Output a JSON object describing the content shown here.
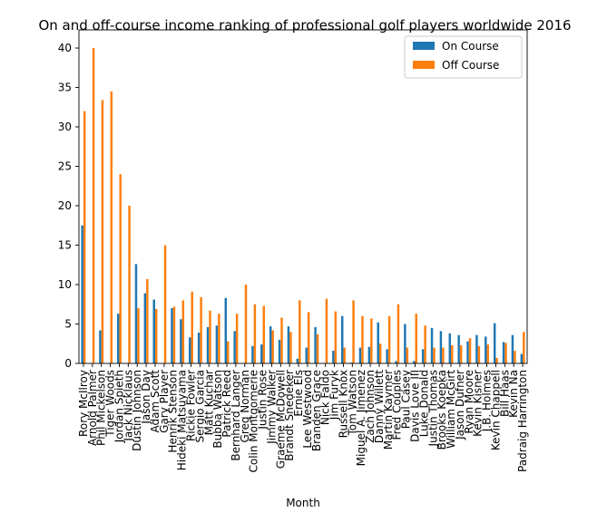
{
  "chart_data": {
    "type": "bar",
    "title": "On and off-course income ranking of professional golf players worldwide 2016",
    "xlabel": "Month",
    "ylabel": "",
    "ylim": [
      0,
      42.3
    ],
    "yticks": [
      0,
      5,
      10,
      15,
      20,
      25,
      30,
      35,
      40
    ],
    "grid": false,
    "legend_position": "top-right",
    "categories": [
      "Rory McIlroy",
      "Arnold Palmer",
      "Phil Mickelson",
      "Tiger Woods",
      "Jordan Spieth",
      "Jack Nicklaus",
      "Dustin Johnson",
      "Jason Day",
      "Adam Scott",
      "Gary Player",
      "Henrik Stenson",
      "Hideki Matsuyama",
      "Rickie Fowler",
      "Sergio Garcia",
      "Matt Kuchar",
      "Bubba Watson",
      "Patrick Reed",
      "Bernhard Langer",
      "Greg Norman",
      "Colin Montgomerie",
      "Justin Rose",
      "Jimmy Walker",
      "Graeme McDowell",
      "Brandt Snedeker",
      "Ernie Els",
      "Lee Westwood",
      "Branden Grace",
      "Nick Faldo",
      "Jim Furyk",
      "Russell Knox",
      "Tom Watson",
      "Miguel A. Jimenez",
      "Zach Johnson",
      "Danny Willett",
      "Martin Kaymer",
      "Fred Couples",
      "Paul Casey",
      "Davis Love III",
      "Luke Donald",
      "Justin Thomas",
      "Brooks Koepka",
      "William McGirt",
      "Jason Dufner",
      "Ryan Moore",
      "Kevin Kisner",
      "J.B. Holmes",
      "Kevin Chappell",
      "Bill Haas",
      "Kevin Na",
      "Padraig Harrington"
    ],
    "series": [
      {
        "name": "On Course",
        "color": "#1f77b4",
        "values": [
          17.5,
          0,
          4.2,
          0,
          6.3,
          0,
          12.6,
          8.9,
          8.1,
          0,
          7.0,
          5.6,
          3.3,
          3.9,
          4.6,
          4.8,
          8.3,
          4.1,
          0,
          2.2,
          2.4,
          4.7,
          3.0,
          4.7,
          0.6,
          2.0,
          4.6,
          0,
          1.6,
          6.0,
          0.1,
          2.0,
          2.1,
          5.2,
          1.8,
          0.3,
          5.0,
          0.3,
          1.8,
          4.5,
          4.1,
          3.8,
          3.6,
          2.8,
          3.6,
          3.4,
          5.1,
          2.7,
          3.6,
          1.2
        ]
      },
      {
        "name": "Off Course",
        "color": "#ff7f0e",
        "values": [
          32,
          40,
          33.4,
          34.5,
          24,
          20,
          7.0,
          10.7,
          6.9,
          15,
          7.2,
          8.0,
          9.1,
          8.4,
          6.7,
          6.3,
          2.8,
          6.3,
          10,
          7.5,
          7.3,
          4.2,
          5.8,
          4.0,
          8.0,
          6.5,
          3.7,
          8.2,
          6.6,
          2.0,
          8.0,
          6.0,
          5.7,
          2.5,
          6.0,
          7.5,
          2.0,
          6.3,
          4.8,
          2.0,
          2.0,
          2.3,
          2.3,
          3.2,
          2.2,
          2.4,
          0.7,
          2.6,
          1.6,
          4.0
        ]
      }
    ]
  }
}
